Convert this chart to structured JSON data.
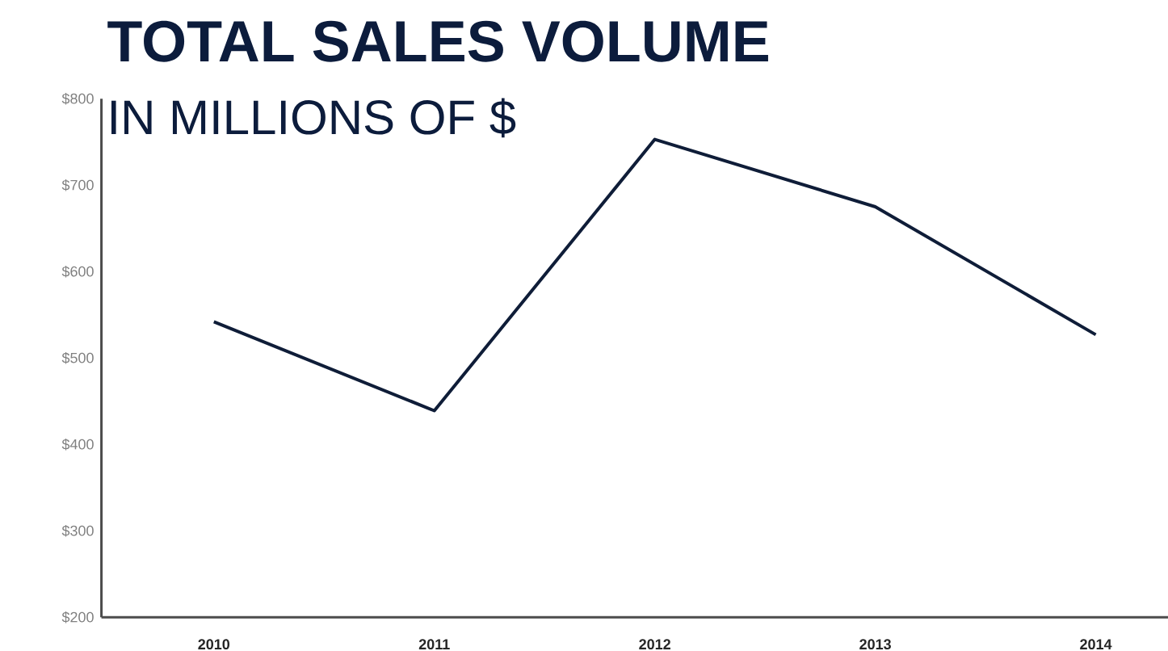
{
  "chart_data": {
    "type": "line",
    "title": "TOTAL SALES VOLUME",
    "subtitle": "IN MILLIONS OF $",
    "categories": [
      "2010",
      "2011",
      "2012",
      "2013",
      "2014"
    ],
    "series": [
      {
        "color": "#0f1d38",
        "values": [
          542,
          439,
          753,
          675,
          527
        ]
      }
    ],
    "ylim": [
      200,
      800
    ],
    "yticks": [
      {
        "value": 200,
        "label": "$200"
      },
      {
        "value": 300,
        "label": "$300"
      },
      {
        "value": 400,
        "label": "$400"
      },
      {
        "value": 500,
        "label": "$500"
      },
      {
        "value": 600,
        "label": "$600"
      },
      {
        "value": 700,
        "label": "$700"
      },
      {
        "value": 800,
        "label": "$800"
      }
    ],
    "grid": false,
    "legend": false,
    "marker": "none",
    "line_style": "solid"
  }
}
